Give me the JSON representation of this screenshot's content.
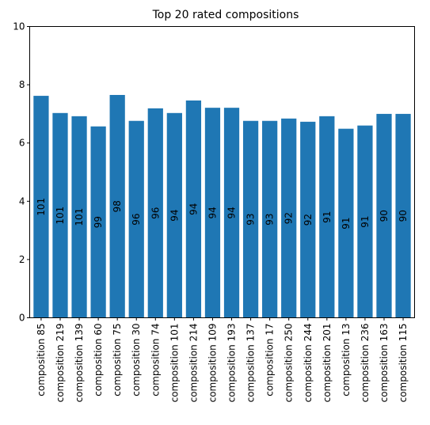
{
  "chart_data": {
    "type": "bar",
    "title": "Top 20 rated compositions",
    "xlabel": "",
    "ylabel": "",
    "ylim": [
      0,
      10
    ],
    "yticks": [
      0,
      2,
      4,
      6,
      8,
      10
    ],
    "grid": false,
    "bar_color": "#1f77b4",
    "categories": [
      "composition 85",
      "composition 219",
      "composition 139",
      "composition 60",
      "composition 75",
      "composition 30",
      "composition 74",
      "composition 101",
      "composition 214",
      "composition 109",
      "composition 193",
      "composition 137",
      "composition 17",
      "composition 250",
      "composition 244",
      "composition 201",
      "composition 13",
      "composition 236",
      "composition 163",
      "composition 115"
    ],
    "values": [
      7.62,
      7.03,
      6.92,
      6.57,
      7.65,
      6.76,
      7.19,
      7.03,
      7.46,
      7.21,
      7.21,
      6.76,
      6.76,
      6.84,
      6.73,
      6.92,
      6.49,
      6.6,
      7.0,
      7.0
    ],
    "bar_labels": [
      "101",
      "101",
      "101",
      "99",
      "98",
      "96",
      "96",
      "94",
      "94",
      "94",
      "94",
      "93",
      "93",
      "92",
      "92",
      "91",
      "91",
      "91",
      "90",
      "90"
    ]
  }
}
